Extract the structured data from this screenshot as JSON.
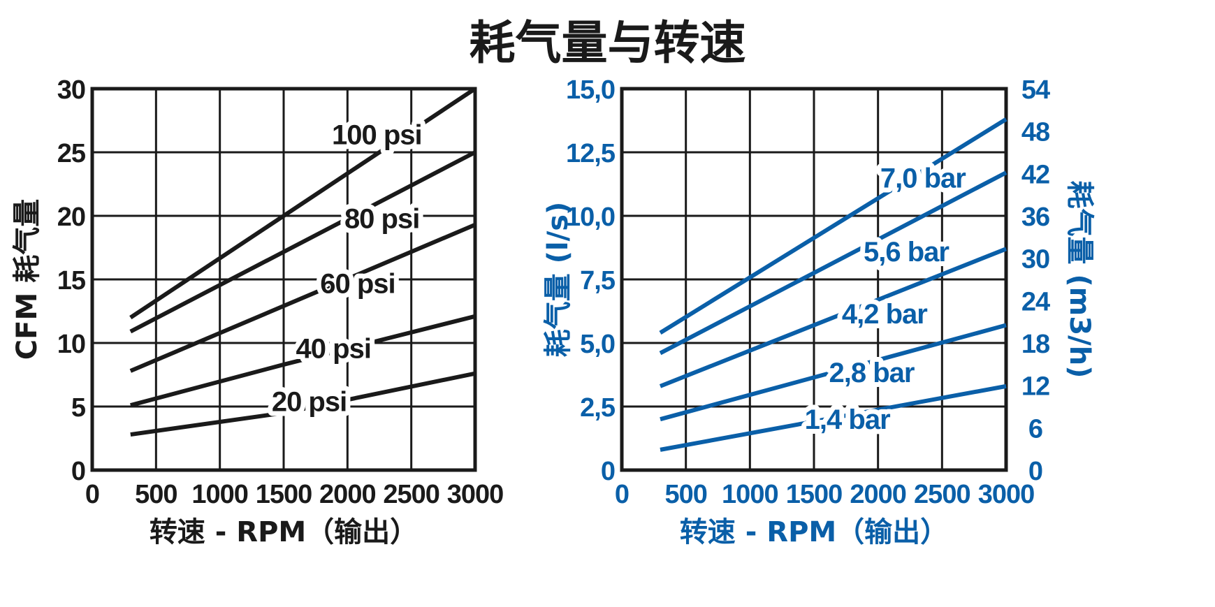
{
  "title": "耗气量与转速",
  "colors": {
    "dark": "#1a1a1a",
    "blue": "#0a5fa8",
    "grid": "#1a1a1a"
  },
  "chart_data": [
    {
      "type": "line",
      "xlabel": "转速 - RPM（输出）",
      "ylabel": "CFM  耗气量",
      "xlim": [
        0,
        3000
      ],
      "ylim": [
        0,
        30
      ],
      "x_ticks": [
        "0",
        "500",
        "1000",
        "1500",
        "2000",
        "2500",
        "3000"
      ],
      "y_ticks": [
        "0",
        "5",
        "10",
        "15",
        "20",
        "25",
        "30"
      ],
      "grid": true,
      "series": [
        {
          "name": "100 psi",
          "x": [
            300,
            3000
          ],
          "y": [
            12.0,
            30.0
          ],
          "label_x": 2230,
          "label_y": 26.4
        },
        {
          "name": "80 psi",
          "x": [
            300,
            3000
          ],
          "y": [
            10.9,
            25.0
          ],
          "label_x": 2270,
          "label_y": 19.8
        },
        {
          "name": "60 psi",
          "x": [
            300,
            3000
          ],
          "y": [
            7.8,
            19.3
          ],
          "label_x": 2080,
          "label_y": 14.7
        },
        {
          "name": "40 psi",
          "x": [
            300,
            1500,
            3000
          ],
          "y": [
            5.1,
            8.3,
            12.1
          ],
          "label_x": 1890,
          "label_y": 9.6
        },
        {
          "name": "20 psi",
          "x": [
            300,
            1500,
            3000
          ],
          "y": [
            2.8,
            4.5,
            7.6
          ],
          "label_x": 1700,
          "label_y": 5.4
        }
      ]
    },
    {
      "type": "line",
      "xlabel": "转速 - RPM（输出）",
      "ylabel": "耗气量 (l/s)",
      "y2label": "耗气量 (m3/h)",
      "xlim": [
        0,
        3000
      ],
      "ylim": [
        0,
        15
      ],
      "y2lim": [
        0,
        54
      ],
      "x_ticks": [
        "0",
        "500",
        "1000",
        "1500",
        "2000",
        "2500",
        "3000"
      ],
      "y_ticks": [
        "0",
        "2,5",
        "5,0",
        "7,5",
        "10,0",
        "12,5",
        "15,0"
      ],
      "y2_ticks": [
        "0",
        "6",
        "12",
        "18",
        "24",
        "30",
        "36",
        "42",
        "48",
        "54"
      ],
      "grid": true,
      "series": [
        {
          "name": "7,0 bar",
          "x": [
            300,
            3000
          ],
          "y": [
            5.4,
            13.8
          ],
          "label_x": 2350,
          "label_y": 11.5
        },
        {
          "name": "5,6 bar",
          "x": [
            300,
            3000
          ],
          "y": [
            4.6,
            11.7
          ],
          "label_x": 2220,
          "label_y": 8.6
        },
        {
          "name": "4,2 bar",
          "x": [
            300,
            3000
          ],
          "y": [
            3.3,
            8.7
          ],
          "label_x": 2050,
          "label_y": 6.15
        },
        {
          "name": "2,8 bar",
          "x": [
            300,
            3000
          ],
          "y": [
            2.0,
            5.7
          ],
          "label_x": 1950,
          "label_y": 3.85
        },
        {
          "name": "1,4 bar",
          "x": [
            300,
            3000
          ],
          "y": [
            0.8,
            3.3
          ],
          "label_x": 1760,
          "label_y": 2.0
        }
      ]
    }
  ]
}
